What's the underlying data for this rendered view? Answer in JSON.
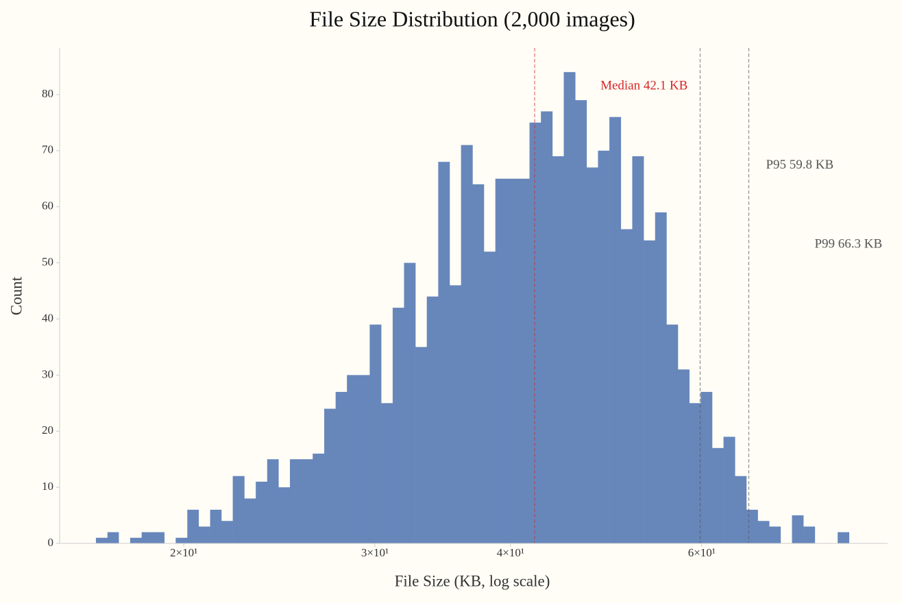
{
  "chart_data": {
    "type": "histogram",
    "title": "File Size Distribution  (2,000 images)",
    "x_label": "File Size (KB, log scale)",
    "y_label": "Count",
    "x_log_scale": true,
    "color": "#6787bb",
    "bins": [
      16.6,
      17.01,
      17.42,
      17.85,
      18.29,
      18.74,
      19.19,
      19.66,
      20.15,
      20.64,
      21.15,
      21.66,
      22.19,
      22.74,
      23.3,
      23.87,
      24.45,
      25.05,
      25.66,
      26.29,
      26.94,
      27.6,
      28.27,
      28.96,
      29.67,
      30.4,
      31.15,
      31.91,
      32.69,
      33.49,
      34.31,
      35.15,
      36.01,
      36.9,
      37.8,
      38.73,
      39.68,
      40.65,
      41.64,
      42.66,
      43.71,
      44.78,
      45.88,
      47.0,
      48.15,
      49.33,
      50.54,
      51.78,
      53.05,
      54.35,
      55.68,
      57.04,
      58.44,
      59.87,
      61.34,
      62.84,
      64.38,
      65.96,
      67.57,
      69.23,
      70.92,
      72.66,
      74.44,
      76.27,
      78.13,
      80.05,
      82.01
    ],
    "counts": [
      1,
      2,
      0,
      1,
      2,
      2,
      0,
      1,
      6,
      3,
      6,
      4,
      12,
      8,
      11,
      15,
      10,
      15,
      15,
      16,
      24,
      27,
      30,
      30,
      39,
      25,
      42,
      50,
      35,
      44,
      68,
      46,
      71,
      64,
      52,
      65,
      65,
      65,
      75,
      77,
      69,
      84,
      79,
      67,
      70,
      76,
      56,
      69,
      54,
      59,
      39,
      31,
      25,
      27,
      17,
      19,
      12,
      6,
      4,
      3,
      0,
      5,
      3,
      0,
      0,
      2
    ],
    "xlim": [
      15.37,
      89.0
    ],
    "ylim": [
      0,
      88.3
    ],
    "xticks": [
      {
        "value": 20,
        "label": "2×10¹"
      },
      {
        "value": 30,
        "label": "3×10¹"
      },
      {
        "value": 40,
        "label": "4×10¹"
      },
      {
        "value": 60,
        "label": "6×10¹"
      }
    ],
    "yticks": [
      0,
      10,
      20,
      30,
      40,
      50,
      60,
      70,
      80
    ],
    "annotations": [
      {
        "label": "Median  42.1 KB",
        "value": 42.1,
        "color": "#d62728"
      },
      {
        "label": "P95  59.8 KB",
        "value": 59.8,
        "color": "#555555"
      },
      {
        "label": "P99  66.3 KB",
        "value": 66.3,
        "color": "#555555"
      }
    ]
  }
}
